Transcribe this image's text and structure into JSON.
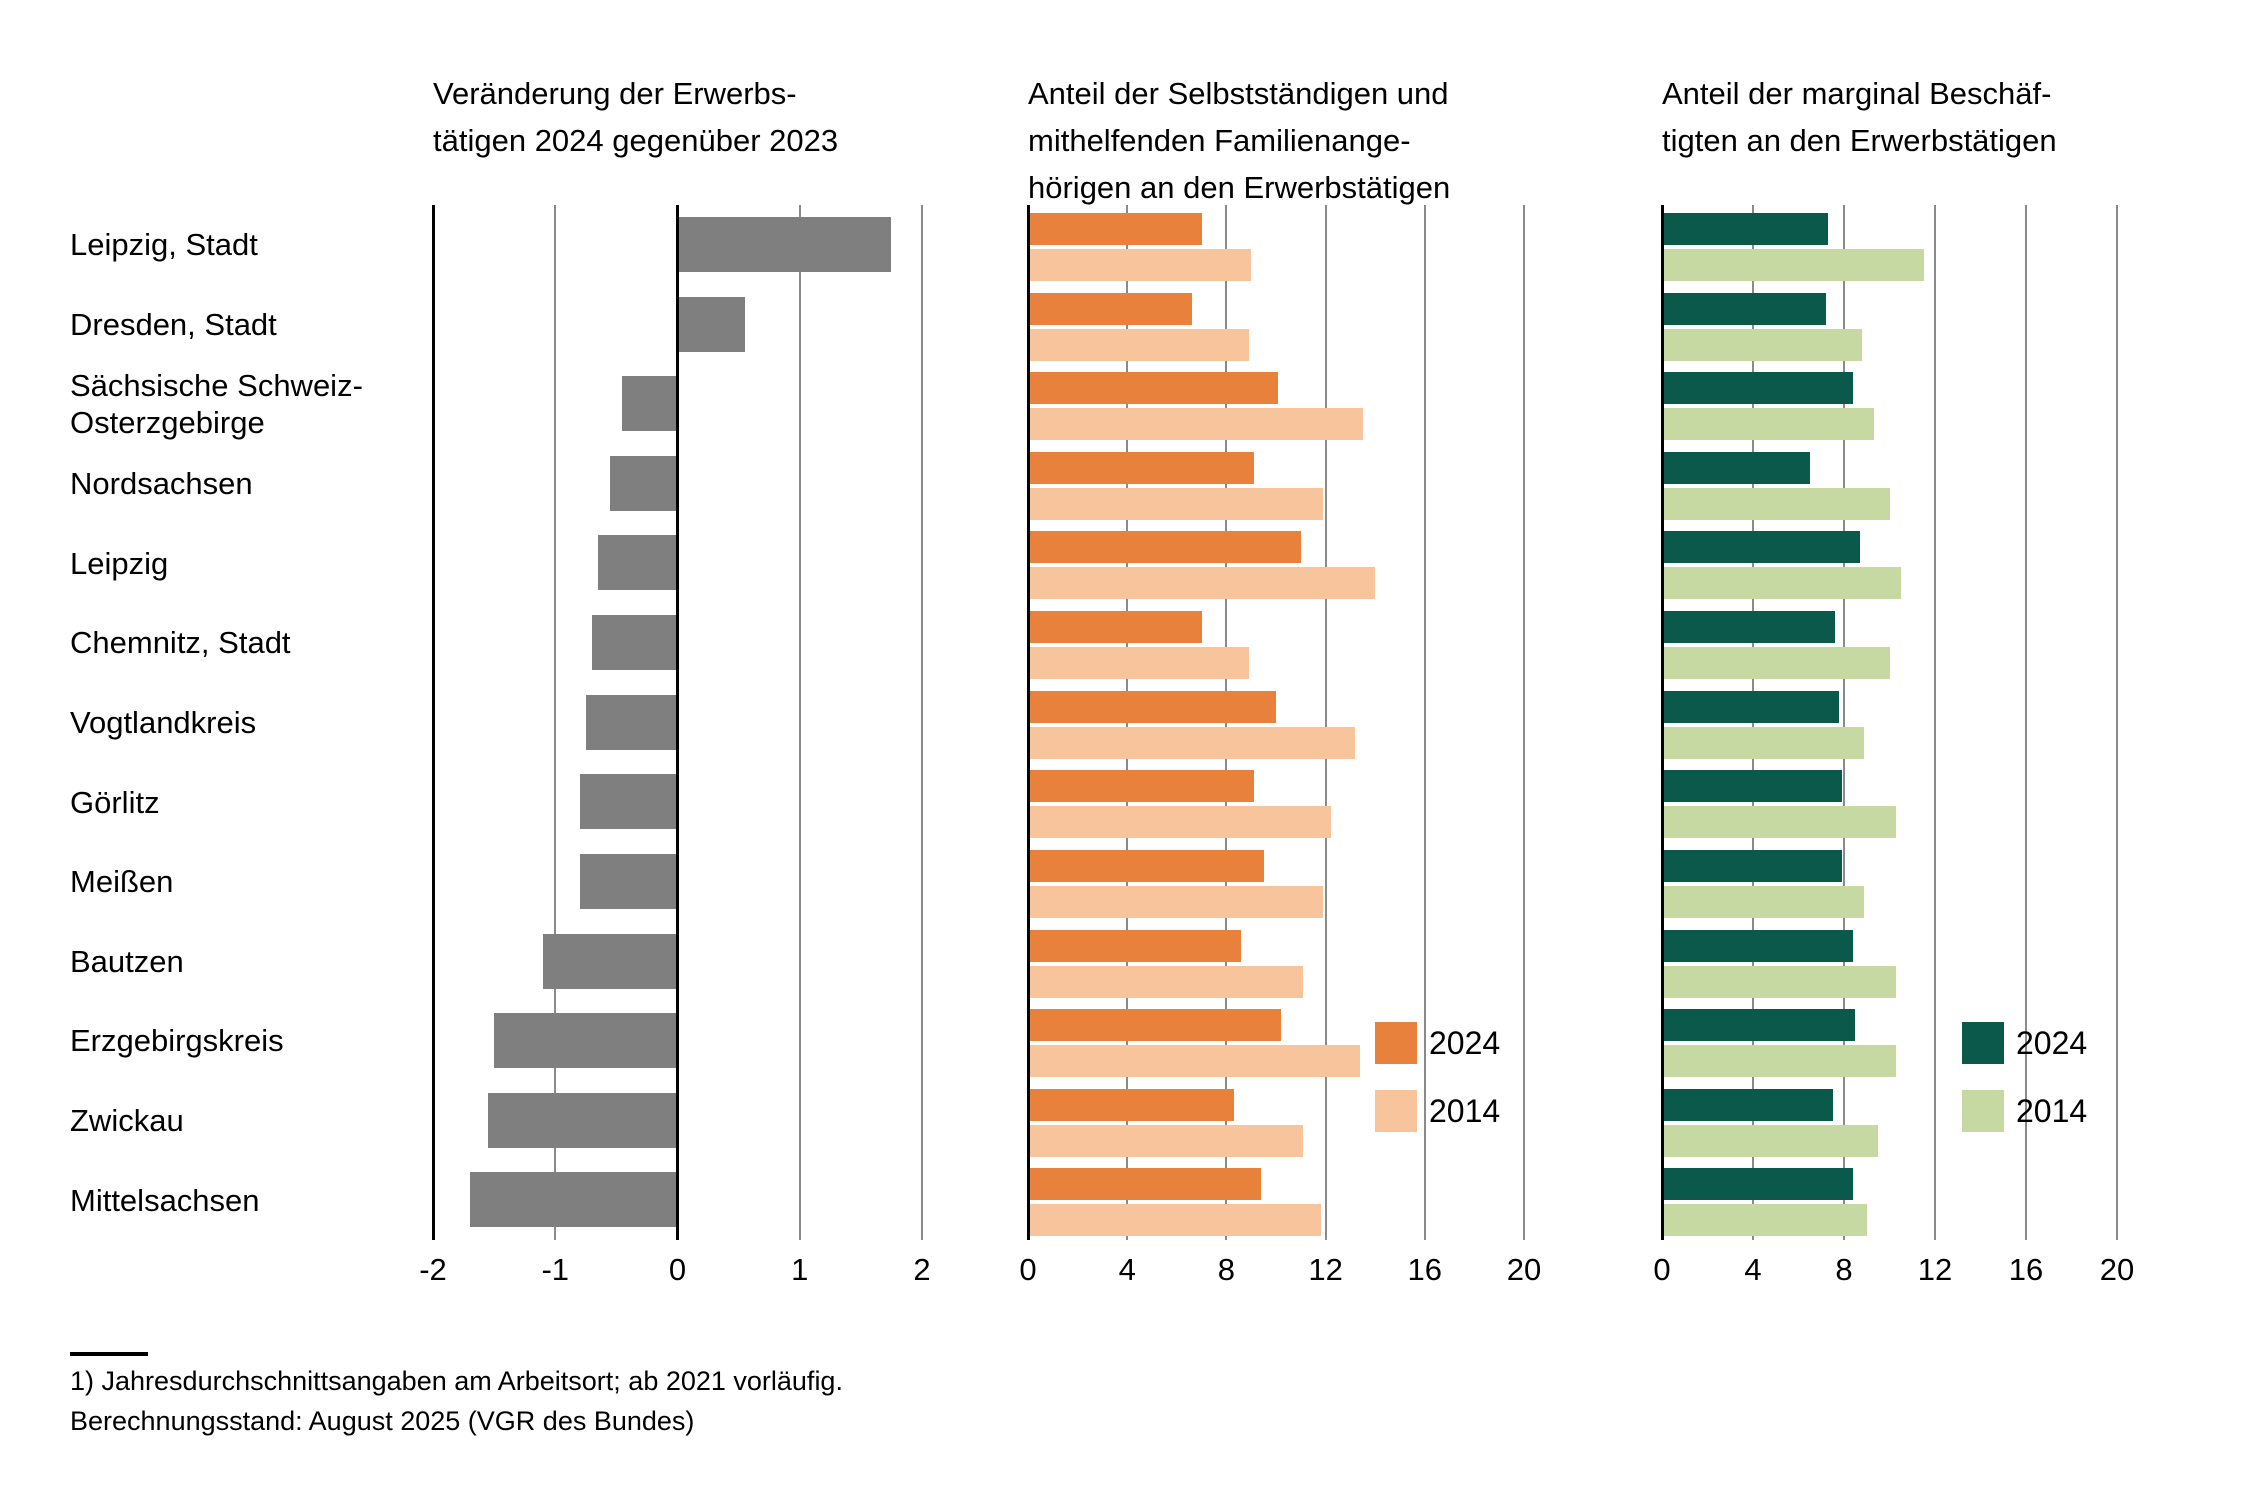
{
  "regions": [
    {
      "name": "Leipzig, Stadt",
      "lines": [
        "Leipzig, Stadt"
      ]
    },
    {
      "name": "Dresden, Stadt",
      "lines": [
        "Dresden, Stadt"
      ]
    },
    {
      "name": "Sächsische Schweiz-Osterzgebirge",
      "lines": [
        "Sächsische Schweiz-",
        "Osterzgebirge"
      ]
    },
    {
      "name": "Nordsachsen",
      "lines": [
        "Nordsachsen"
      ]
    },
    {
      "name": "Leipzig",
      "lines": [
        "Leipzig"
      ]
    },
    {
      "name": "Chemnitz, Stadt",
      "lines": [
        "Chemnitz, Stadt"
      ]
    },
    {
      "name": "Vogtlandkreis",
      "lines": [
        "Vogtlandkreis"
      ]
    },
    {
      "name": "Görlitz",
      "lines": [
        "Görlitz"
      ]
    },
    {
      "name": "Meißen",
      "lines": [
        "Meißen"
      ]
    },
    {
      "name": "Bautzen",
      "lines": [
        "Bautzen"
      ]
    },
    {
      "name": "Erzgebirgskreis",
      "lines": [
        "Erzgebirgskreis"
      ]
    },
    {
      "name": "Zwickau",
      "lines": [
        "Zwickau"
      ]
    },
    {
      "name": "Mittelsachsen",
      "lines": [
        "Mittelsachsen"
      ]
    }
  ],
  "chart_data": [
    {
      "type": "bar",
      "orientation": "horizontal",
      "title": "Veränderung der Erwerbstätigen 2024 gegenüber 2023",
      "title_lines": [
        "Veränderung der Erwerbs-",
        "tätigen 2024 gegenüber 2023"
      ],
      "xlim": [
        -2,
        2
      ],
      "xticks": [
        -2,
        -1,
        0,
        1,
        2
      ],
      "grid": true,
      "categories": [
        "Leipzig, Stadt",
        "Dresden, Stadt",
        "Sächsische Schweiz-Osterzgebirge",
        "Nordsachsen",
        "Leipzig",
        "Chemnitz, Stadt",
        "Vogtlandkreis",
        "Görlitz",
        "Meißen",
        "Bautzen",
        "Erzgebirgskreis",
        "Zwickau",
        "Mittelsachsen"
      ],
      "values": [
        1.75,
        0.55,
        -0.45,
        -0.55,
        -0.65,
        -0.7,
        -0.75,
        -0.8,
        -0.8,
        -1.1,
        -1.5,
        -1.55,
        -1.7
      ],
      "bar_color": "#7f7f7f"
    },
    {
      "type": "bar",
      "orientation": "horizontal",
      "title": "Anteil der Selbstständigen und mithelfenden Familienangehörigen an den Erwerbstätigen",
      "title_lines": [
        "Anteil der Selbstständigen und",
        "mithelfenden Familienange-",
        "hörigen an den Erwerbstätigen"
      ],
      "xlim": [
        0,
        20
      ],
      "xticks": [
        0,
        4,
        8,
        12,
        16,
        20
      ],
      "grid": true,
      "legend_position": "right-middle",
      "categories": [
        "Leipzig, Stadt",
        "Dresden, Stadt",
        "Sächsische Schweiz-Osterzgebirge",
        "Nordsachsen",
        "Leipzig",
        "Chemnitz, Stadt",
        "Vogtlandkreis",
        "Görlitz",
        "Meißen",
        "Bautzen",
        "Erzgebirgskreis",
        "Zwickau",
        "Mittelsachsen"
      ],
      "series": [
        {
          "name": "2024",
          "color": "#e8813c",
          "values": [
            7.0,
            6.6,
            10.1,
            9.1,
            11.0,
            7.0,
            10.0,
            9.1,
            9.5,
            8.6,
            10.2,
            8.3,
            9.4
          ]
        },
        {
          "name": "2014",
          "color": "#f7c49c",
          "values": [
            9.0,
            8.9,
            13.5,
            11.9,
            14.0,
            8.9,
            13.2,
            12.2,
            11.9,
            11.1,
            13.4,
            11.1,
            11.8
          ]
        }
      ]
    },
    {
      "type": "bar",
      "orientation": "horizontal",
      "title": "Anteil der marginal Beschäftigten an den Erwerbstätigen",
      "title_lines": [
        "Anteil der marginal Beschäf-",
        "tigten an den Erwerbstätigen"
      ],
      "xlim": [
        0,
        20
      ],
      "xticks": [
        0,
        4,
        8,
        12,
        16,
        20
      ],
      "grid": true,
      "legend_position": "right-middle",
      "categories": [
        "Leipzig, Stadt",
        "Dresden, Stadt",
        "Sächsische Schweiz-Osterzgebirge",
        "Nordsachsen",
        "Leipzig",
        "Chemnitz, Stadt",
        "Vogtlandkreis",
        "Görlitz",
        "Meißen",
        "Bautzen",
        "Erzgebirgskreis",
        "Zwickau",
        "Mittelsachsen"
      ],
      "series": [
        {
          "name": "2024",
          "color": "#0a594a",
          "values": [
            7.3,
            7.2,
            8.4,
            6.5,
            8.7,
            7.6,
            7.8,
            7.9,
            7.9,
            8.4,
            8.5,
            7.5,
            8.4
          ]
        },
        {
          "name": "2014",
          "color": "#c7d9a2",
          "values": [
            11.5,
            8.8,
            9.3,
            10.0,
            10.5,
            10.0,
            8.9,
            10.3,
            8.9,
            10.3,
            10.3,
            9.5,
            9.0
          ]
        }
      ]
    }
  ],
  "footnotes": [
    "1) Jahresdurchschnittsangaben am Arbeitsort; ab 2021 vorläufig.",
    "Berechnungsstand: August 2025 (VGR des Bundes)"
  ],
  "colors": {
    "bar_gray": "#7f7f7f",
    "orange_2024": "#e8813c",
    "orange_2014": "#f7c49c",
    "green_2024": "#0a594a",
    "green_2014": "#c7d9a2",
    "axis_black": "#000000",
    "grid_gray": "#8a8a8a"
  }
}
